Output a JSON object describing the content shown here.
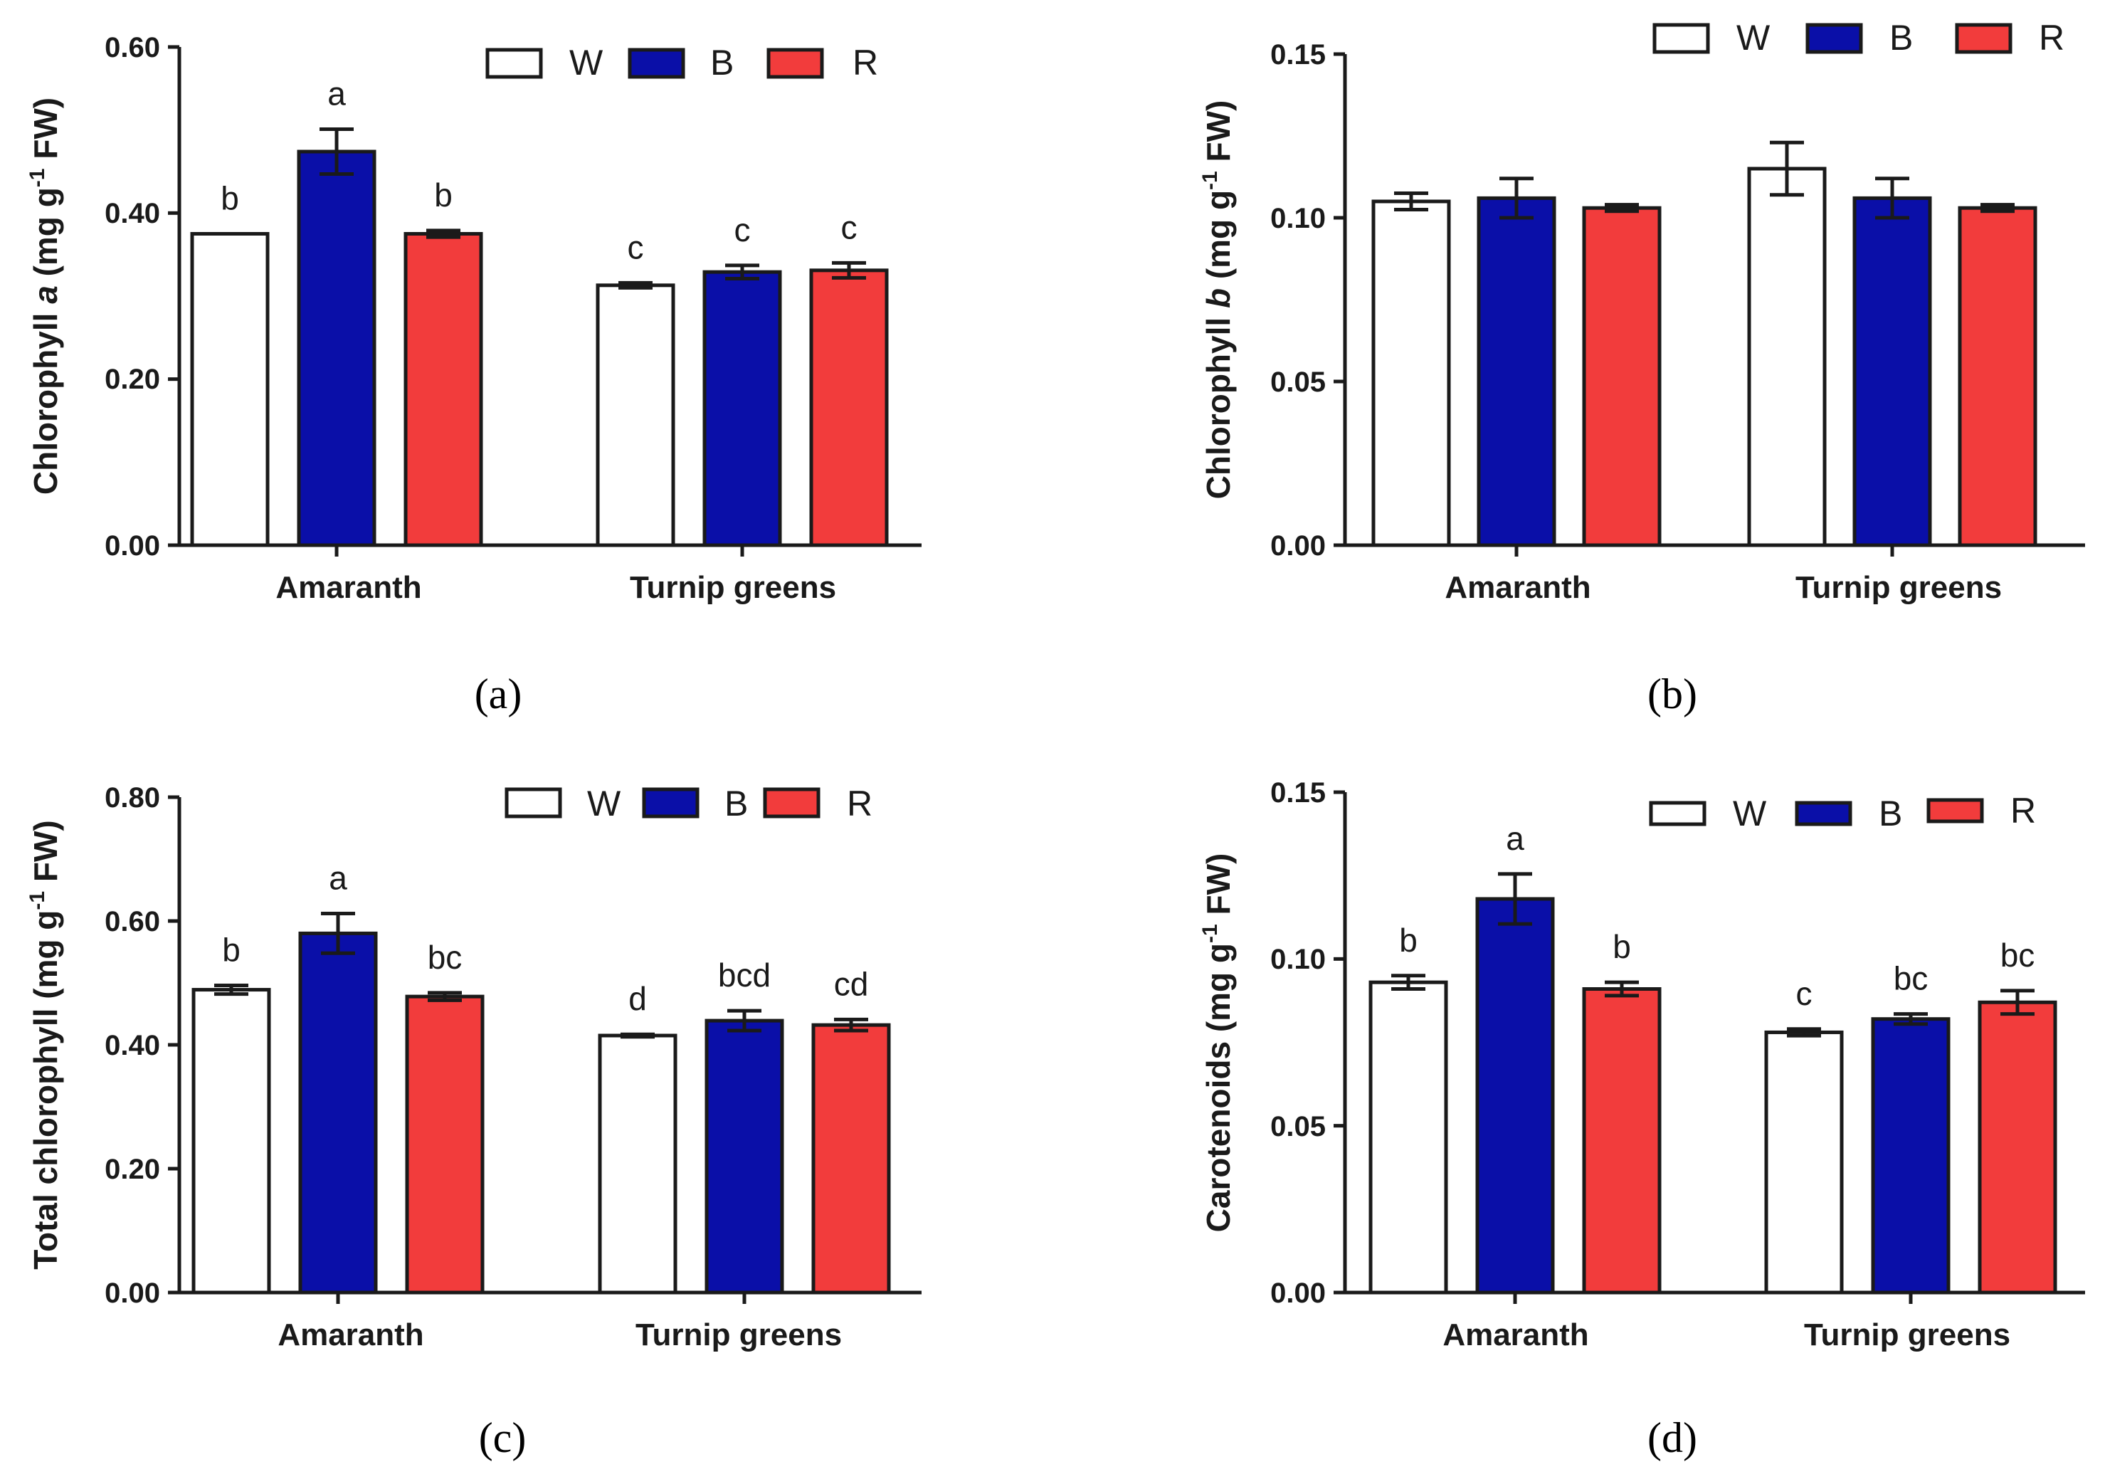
{
  "colors": {
    "W": "#ffffff",
    "B": "#0a0fa8",
    "R": "#f23c3c",
    "stroke": "#1a1a1a"
  },
  "chart_data": [
    {
      "type": "bar",
      "panel": "(a)",
      "ylabel_parts": [
        "Chlorophyll ",
        "a",
        " (mg g",
        "-1",
        " FW)"
      ],
      "ylim": [
        0,
        0.6
      ],
      "yticks": [
        "0.00",
        "0.20",
        "0.40",
        "0.60"
      ],
      "categories": [
        "Amaranth",
        "Turnip greens"
      ],
      "legend": [
        "W",
        "B",
        "R"
      ],
      "series": [
        {
          "name": "W",
          "values": [
            0.375,
            0.313
          ],
          "errors": [
            0.0,
            0.003
          ],
          "letters": [
            "b",
            "c"
          ]
        },
        {
          "name": "B",
          "values": [
            0.474,
            0.329
          ],
          "errors": [
            0.027,
            0.008
          ],
          "letters": [
            "a",
            "c"
          ]
        },
        {
          "name": "R",
          "values": [
            0.375,
            0.331
          ],
          "errors": [
            0.004,
            0.009
          ],
          "letters": [
            "b",
            "c"
          ]
        }
      ]
    },
    {
      "type": "bar",
      "panel": "(b)",
      "ylabel_parts": [
        "Chlorophyll ",
        "b",
        " (mg g",
        "-1",
        " FW)"
      ],
      "ylim": [
        0,
        0.15
      ],
      "yticks": [
        "0.00",
        "0.05",
        "0.10",
        "0.15"
      ],
      "categories": [
        "Amaranth",
        "Turnip greens"
      ],
      "legend": [
        "W",
        "B",
        "R"
      ],
      "series": [
        {
          "name": "W",
          "values": [
            0.105,
            0.115
          ],
          "errors": [
            0.0025,
            0.008
          ],
          "letters": [
            "",
            ""
          ]
        },
        {
          "name": "B",
          "values": [
            0.106,
            0.106
          ],
          "errors": [
            0.006,
            0.006
          ],
          "letters": [
            "",
            ""
          ]
        },
        {
          "name": "R",
          "values": [
            0.103,
            0.103
          ],
          "errors": [
            0.001,
            0.001
          ],
          "letters": [
            "",
            ""
          ]
        }
      ]
    },
    {
      "type": "bar",
      "panel": "(c)",
      "ylabel_parts": [
        "Total chlorophyll (mg g",
        "-1",
        " FW)"
      ],
      "ylim": [
        0,
        0.8
      ],
      "yticks": [
        "0.00",
        "0.20",
        "0.40",
        "0.60",
        "0.80"
      ],
      "categories": [
        "Amaranth",
        "Turnip greens"
      ],
      "legend": [
        "W",
        "B",
        "R"
      ],
      "series": [
        {
          "name": "W",
          "values": [
            0.489,
            0.415
          ],
          "errors": [
            0.007,
            0.002
          ],
          "letters": [
            "b",
            "d"
          ]
        },
        {
          "name": "B",
          "values": [
            0.58,
            0.439
          ],
          "errors": [
            0.032,
            0.016
          ],
          "letters": [
            "a",
            "bcd"
          ]
        },
        {
          "name": "R",
          "values": [
            0.478,
            0.432
          ],
          "errors": [
            0.006,
            0.009
          ],
          "letters": [
            "bc",
            "cd"
          ]
        }
      ]
    },
    {
      "type": "bar",
      "panel": "(d)",
      "ylabel_parts": [
        "Carotenoids (mg g",
        "-1",
        " FW)"
      ],
      "ylim": [
        0,
        0.15
      ],
      "yticks": [
        "0.00",
        "0.05",
        "0.10",
        "0.15"
      ],
      "categories": [
        "Amaranth",
        "Turnip greens"
      ],
      "legend": [
        "W",
        "B",
        "R"
      ],
      "series": [
        {
          "name": "W",
          "values": [
            0.093,
            0.078
          ],
          "errors": [
            0.002,
            0.001
          ],
          "letters": [
            "b",
            "c"
          ]
        },
        {
          "name": "B",
          "values": [
            0.118,
            0.082
          ],
          "errors": [
            0.0075,
            0.0015
          ],
          "letters": [
            "a",
            "bc"
          ]
        },
        {
          "name": "R",
          "values": [
            0.091,
            0.087
          ],
          "errors": [
            0.002,
            0.0035
          ],
          "letters": [
            "b",
            "bc"
          ]
        }
      ]
    }
  ]
}
